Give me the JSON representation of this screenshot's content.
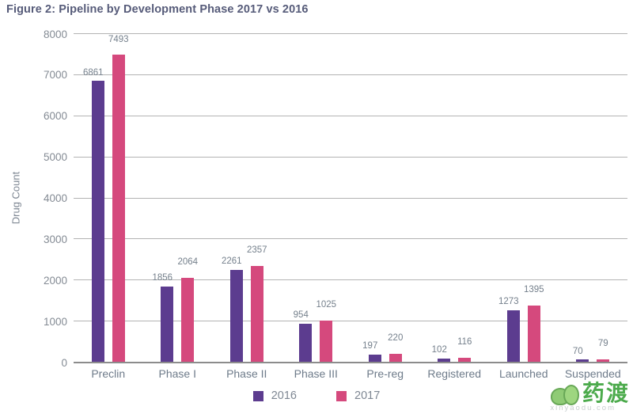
{
  "title": "Figure 2: Pipeline by Development Phase 2017 vs 2016",
  "chart_data": {
    "type": "bar",
    "title": "Figure 2: Pipeline by Development Phase 2017 vs 2016",
    "categories": [
      "Preclin",
      "Phase I",
      "Phase II",
      "Phase III",
      "Pre-reg",
      "Registered",
      "Launched",
      "Suspended"
    ],
    "series": [
      {
        "name": "2016",
        "color": "#5c3c8f",
        "values": [
          6861,
          1856,
          2261,
          954,
          197,
          102,
          1273,
          70
        ]
      },
      {
        "name": "2017",
        "color": "#d5497d",
        "values": [
          7493,
          2064,
          2357,
          1025,
          220,
          116,
          1395,
          79
        ]
      }
    ],
    "xlabel": "",
    "ylabel": "Drug Count",
    "ylim": [
      0,
      8000
    ],
    "ytick_step": 1000,
    "grid": "horizontal",
    "legend_position": "bottom",
    "value_labels_shown": true
  },
  "watermark": {
    "logo_text": "药渡",
    "site_text": "xinyaodu.com"
  },
  "colors": {
    "bar_2016": "#5c3c8f",
    "bar_2017": "#d5497d",
    "title_text": "#565b79",
    "axis_text": "#7e8793",
    "gridline": "#b3b3b3",
    "axis_line": "#8c8c8c",
    "watermark_green": "#3aa23a"
  }
}
